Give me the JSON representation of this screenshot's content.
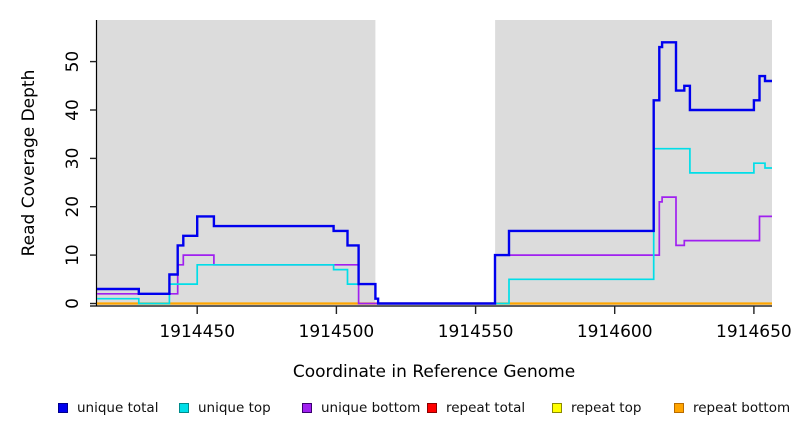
{
  "figure": {
    "background": "#FFFFFF",
    "plot_background": "#DCDCDC",
    "gap_background": "#FFFFFF",
    "axis_color": "#000000",
    "tick_color": "#222222",
    "text_color": "#000000"
  },
  "chart_data": {
    "type": "line",
    "subtype": "step-coverage",
    "title": "",
    "xlabel": "Coordinate in Reference Genome",
    "ylabel": "Read Coverage Depth",
    "xlim": [
      1914414,
      1914656.5
    ],
    "ylim": [
      0,
      58.6
    ],
    "xticks": [
      1914450,
      1914500,
      1914550,
      1914600,
      1914650
    ],
    "yticks": [
      0,
      10,
      20,
      30,
      40,
      50
    ],
    "grid": false,
    "legend_position": "bottom",
    "no_data_region": {
      "from": 1914514,
      "to": 1914557
    },
    "series": [
      {
        "label": "unique total",
        "color": "#0000EE",
        "edge": "#00008B",
        "width": 2.4,
        "steps": [
          [
            1914414,
            3
          ],
          [
            1914429,
            2
          ],
          [
            1914440,
            6
          ],
          [
            1914443,
            12
          ],
          [
            1914445,
            14
          ],
          [
            1914450,
            18
          ],
          [
            1914456,
            16
          ],
          [
            1914499,
            15
          ],
          [
            1914504,
            12
          ],
          [
            1914508,
            4
          ],
          [
            1914514,
            1
          ],
          [
            1914515,
            0
          ],
          [
            1914557,
            10
          ],
          [
            1914562,
            15
          ],
          [
            1914614,
            42
          ],
          [
            1914616,
            53
          ],
          [
            1914617,
            54
          ],
          [
            1914622,
            44
          ],
          [
            1914625,
            45
          ],
          [
            1914627,
            40
          ],
          [
            1914650,
            42
          ],
          [
            1914652,
            47
          ],
          [
            1914654,
            46
          ]
        ]
      },
      {
        "label": "unique top",
        "color": "#00DEE8",
        "edge": "#008B8B",
        "width": 1.7,
        "steps": [
          [
            1914414,
            1
          ],
          [
            1914429,
            0
          ],
          [
            1914440,
            4
          ],
          [
            1914450,
            8
          ],
          [
            1914499,
            7
          ],
          [
            1914504,
            4
          ],
          [
            1914514,
            1
          ],
          [
            1914515,
            0
          ],
          [
            1914562,
            5
          ],
          [
            1914614,
            32
          ],
          [
            1914627,
            27
          ],
          [
            1914650,
            29
          ],
          [
            1914654,
            28
          ]
        ]
      },
      {
        "label": "unique bottom",
        "color": "#A020F0",
        "edge": "#3A0070",
        "width": 1.7,
        "steps": [
          [
            1914414,
            2
          ],
          [
            1914443,
            8
          ],
          [
            1914445,
            10
          ],
          [
            1914456,
            8
          ],
          [
            1914508,
            0
          ],
          [
            1914557,
            10
          ],
          [
            1914616,
            21
          ],
          [
            1914617,
            22
          ],
          [
            1914622,
            12
          ],
          [
            1914625,
            13
          ],
          [
            1914652,
            18
          ]
        ]
      },
      {
        "label": "repeat total",
        "color": "#FF0000",
        "edge": "#8B0000",
        "width": 1.5,
        "steps": [
          [
            1914414,
            0
          ]
        ]
      },
      {
        "label": "repeat top",
        "color": "#FFFF00",
        "edge": "#8B8B00",
        "width": 1.5,
        "steps": [
          [
            1914414,
            0
          ]
        ]
      },
      {
        "label": "repeat bottom",
        "color": "#FFA500",
        "edge": "#B86B00",
        "width": 2.2,
        "steps": [
          [
            1914414,
            0
          ]
        ]
      }
    ],
    "draw_order": [
      3,
      4,
      5,
      2,
      1,
      0
    ]
  }
}
